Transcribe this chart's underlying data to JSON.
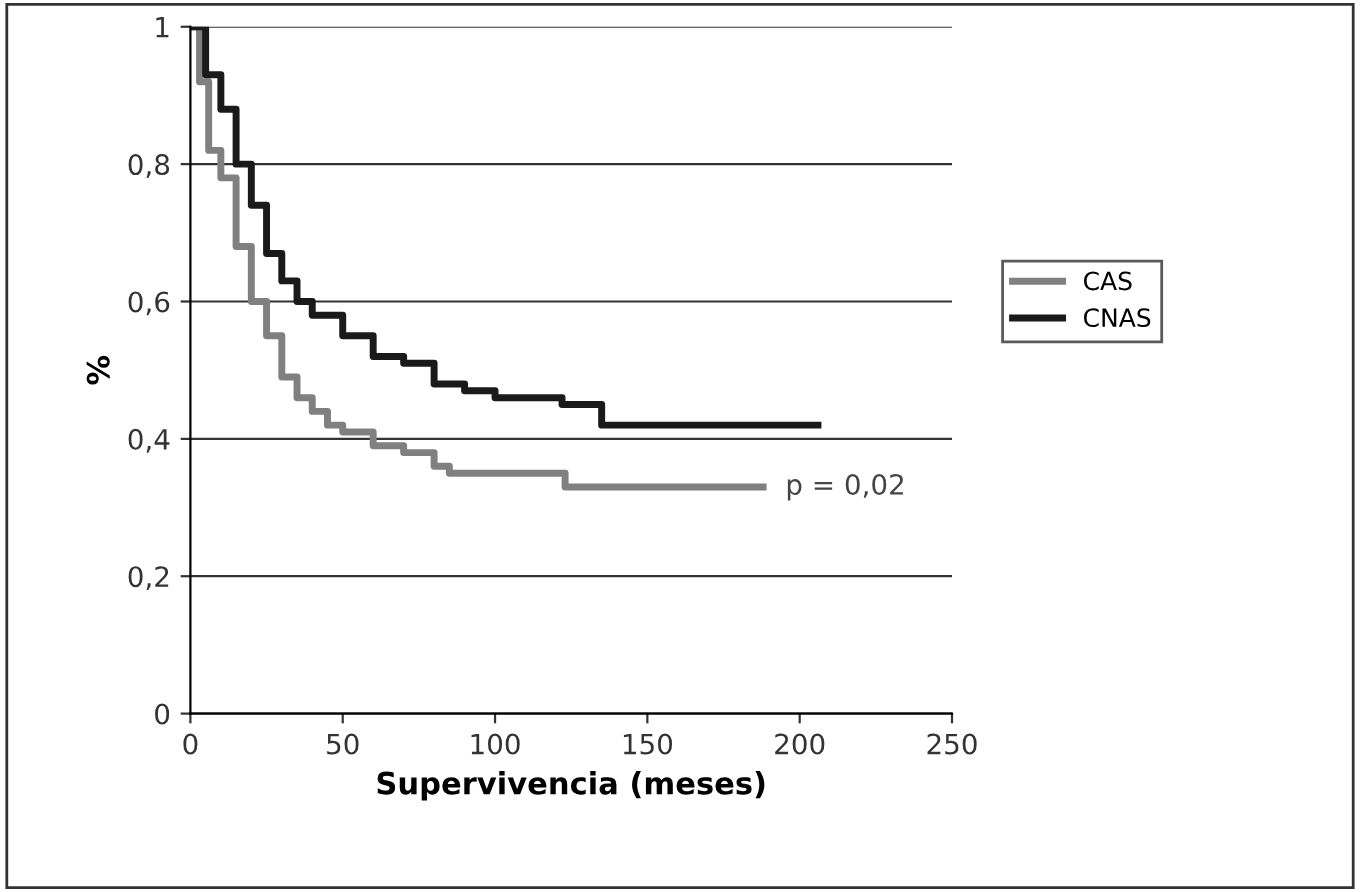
{
  "chart_data": {
    "type": "step",
    "xlabel": "Supervivencia (meses)",
    "ylabel": "%",
    "xlim": [
      0,
      250
    ],
    "xticks": [
      0,
      50,
      100,
      150,
      200,
      250
    ],
    "ylim": [
      0,
      1
    ],
    "yticks": [
      0,
      {
        "value": 0.2,
        "label": "0,2"
      },
      {
        "value": 0.4,
        "label": "0,4"
      },
      {
        "value": 0.6,
        "label": "0,6"
      },
      {
        "value": 0.8,
        "label": "0,8"
      },
      1
    ],
    "grid": "y",
    "legend": "right",
    "annotations": [
      {
        "text": "p = 0,02",
        "x": 188,
        "y": 0.33
      }
    ],
    "series": [
      {
        "name": "CAS",
        "color": "#808080",
        "x": [
          0,
          3,
          6,
          10,
          15,
          20,
          25,
          30,
          35,
          40,
          45,
          50,
          60,
          70,
          80,
          85,
          123,
          188
        ],
        "values": [
          1,
          0.92,
          0.82,
          0.78,
          0.68,
          0.6,
          0.55,
          0.49,
          0.46,
          0.44,
          0.42,
          0.41,
          0.39,
          0.38,
          0.36,
          0.35,
          0.33,
          0.33
        ]
      },
      {
        "name": "CNAS",
        "color": "#1a1a1a",
        "x": [
          0,
          5,
          10,
          15,
          20,
          25,
          30,
          35,
          40,
          50,
          60,
          70,
          80,
          90,
          100,
          122,
          135,
          206
        ],
        "values": [
          1,
          0.93,
          0.88,
          0.8,
          0.74,
          0.67,
          0.63,
          0.6,
          0.58,
          0.55,
          0.52,
          0.51,
          0.48,
          0.47,
          0.46,
          0.45,
          0.42,
          0.42
        ]
      }
    ]
  }
}
